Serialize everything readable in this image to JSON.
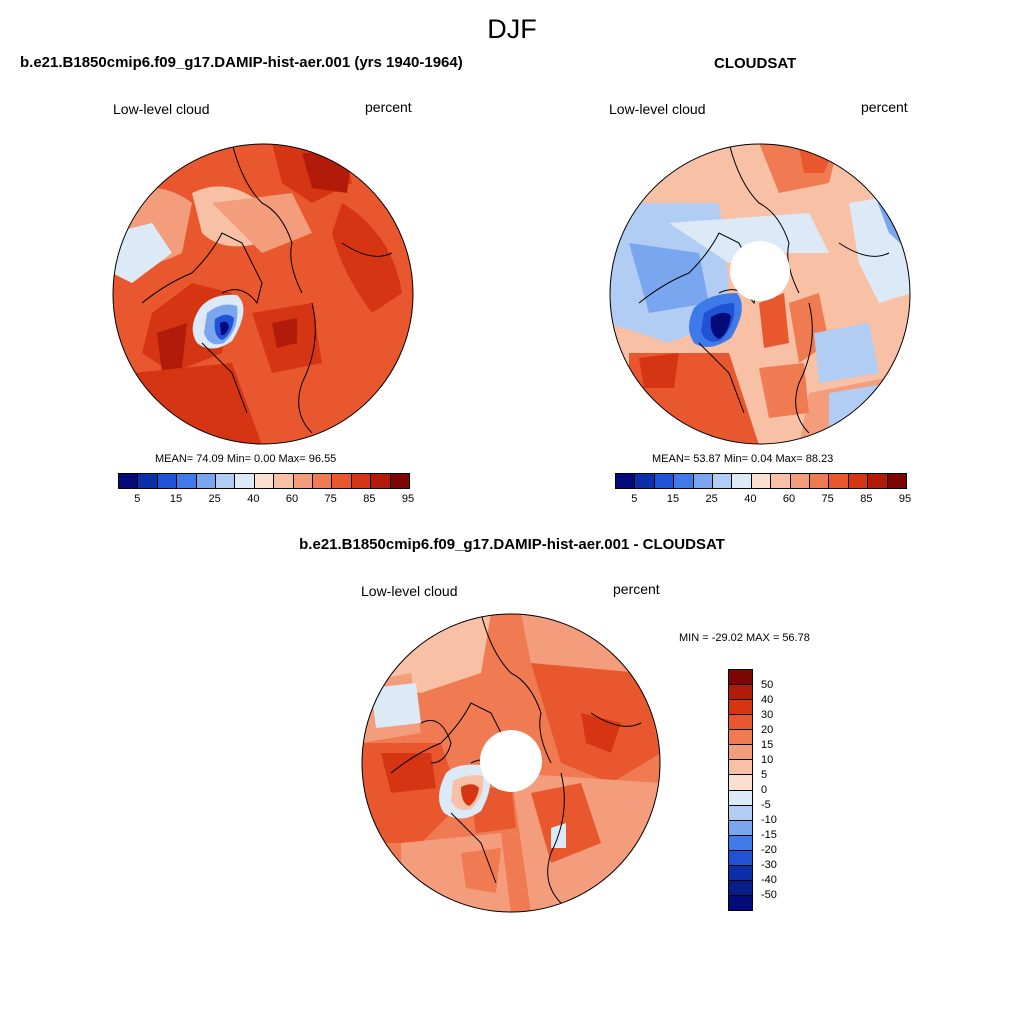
{
  "season": "DJF",
  "panels": [
    {
      "title": "b.e21.B1850cmip6.f09_g17.DAMIP-hist-aer.001 (yrs 1940-1964)",
      "variable": "Low-level cloud",
      "units": "percent",
      "stats": "MEAN=  74.09  Min=   0.00  Max=  96.55"
    },
    {
      "title": "CLOUDSAT",
      "variable": "Low-level cloud",
      "units": "percent",
      "stats": "MEAN=  53.87  Min=   0.04  Max=  88.23"
    },
    {
      "title": "b.e21.B1850cmip6.f09_g17.DAMIP-hist-aer.001 - CLOUDSAT",
      "variable": "Low-level cloud",
      "units": "percent",
      "stats": "MIN = -29.02 MAX =  56.78"
    }
  ],
  "colorbar_abs": {
    "ticks": [
      "5",
      "15",
      "25",
      "40",
      "60",
      "75",
      "85",
      "95"
    ],
    "colors": [
      "#040a7a",
      "#0b2fa8",
      "#1f52d4",
      "#3f7be8",
      "#7aa6f0",
      "#b2cdf4",
      "#dceaf8",
      "#fbe0d0",
      "#f8c1a6",
      "#f49d7c",
      "#f07a52",
      "#e8572d",
      "#d63514",
      "#b21b0a",
      "#7d0605"
    ]
  },
  "colorbar_diff": {
    "ticks": [
      "50",
      "40",
      "30",
      "20",
      "15",
      "10",
      "5",
      "0",
      "-5",
      "-10",
      "-15",
      "-20",
      "-30",
      "-40",
      "-50"
    ],
    "colors": [
      "#7d0605",
      "#b21b0a",
      "#d63514",
      "#e8572d",
      "#f07a52",
      "#f49d7c",
      "#f8c1a6",
      "#fbe0d0",
      "#dceaf8",
      "#b2cdf4",
      "#7aa6f0",
      "#3f7be8",
      "#1f52d4",
      "#0b2fa8",
      "#071e8a",
      "#040a7a"
    ]
  }
}
